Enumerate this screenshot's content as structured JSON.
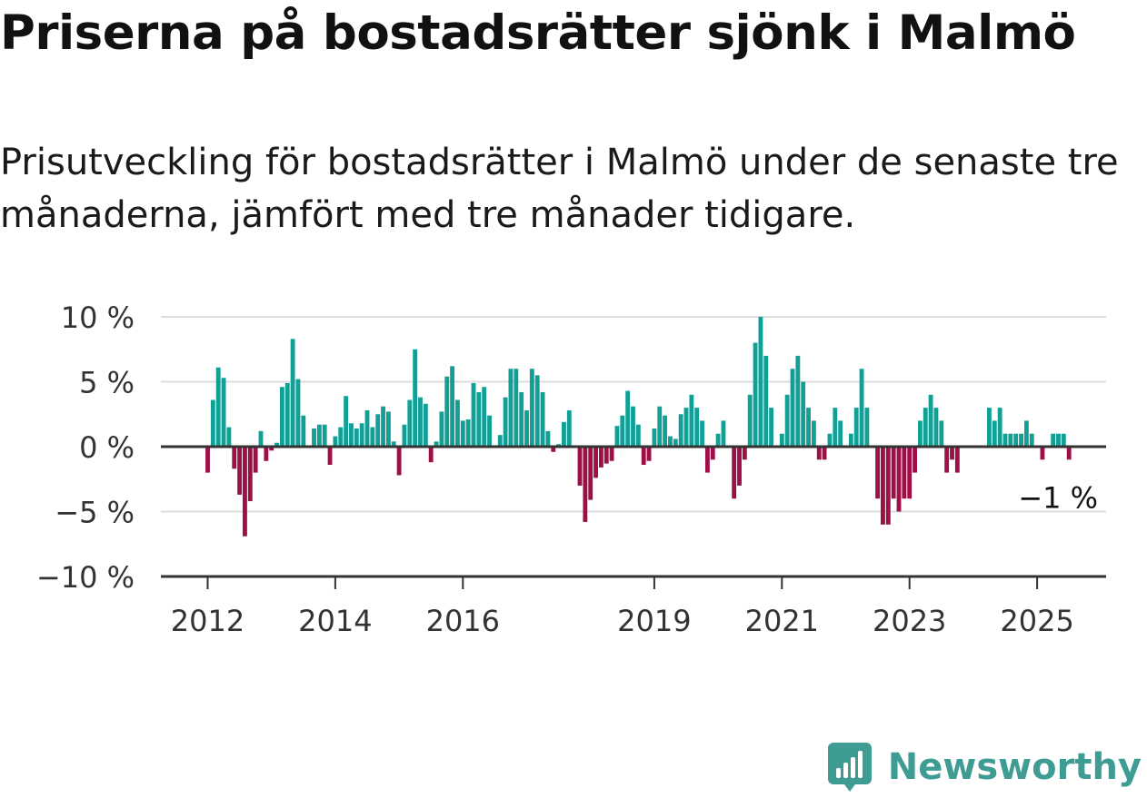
{
  "title": "Priserna på bostadsrätter sjönk i Malmö",
  "subtitle": "Prisutveckling för bostadsrätter i Malmö under de senaste tre månaderna, jämfört med tre månader tidigare.",
  "brand": {
    "name": "Newsworthy",
    "icon": "newsworthy-logo-icon"
  },
  "colors": {
    "positive": "#12a096",
    "negative": "#9e0f47",
    "grid": "#dddddd",
    "axis": "#333333"
  },
  "chart_data": {
    "type": "bar",
    "x_start": "2012-01",
    "y_ticks": [
      10,
      5,
      0,
      -5,
      -10
    ],
    "y_tick_labels": [
      "10 %",
      "5 %",
      "0 %",
      "−5 %",
      "−10 %"
    ],
    "ylim": [
      -10,
      10
    ],
    "x_tick_labels": [
      {
        "label": "2012",
        "date": "2012-01"
      },
      {
        "label": "2014",
        "date": "2014-01"
      },
      {
        "label": "2016",
        "date": "2016-01"
      },
      {
        "label": "2019",
        "date": "2019-01"
      },
      {
        "label": "2021",
        "date": "2021-01"
      },
      {
        "label": "2023",
        "date": "2023-01"
      },
      {
        "label": "2025",
        "date": "2025-01"
      }
    ],
    "annotation": {
      "text": "−1 %",
      "value": -1
    },
    "values": [
      -2.0,
      3.6,
      6.1,
      5.3,
      1.5,
      -1.7,
      -3.7,
      -6.9,
      -4.2,
      -2.0,
      1.2,
      -1.1,
      -0.3,
      0.3,
      4.6,
      4.9,
      8.3,
      5.2,
      2.4,
      0.1,
      1.4,
      1.7,
      1.7,
      -1.4,
      0.8,
      1.5,
      3.9,
      1.8,
      1.4,
      1.8,
      2.8,
      1.5,
      2.5,
      3.1,
      2.7,
      0.4,
      -2.2,
      1.7,
      3.6,
      7.5,
      3.8,
      3.3,
      -1.2,
      0.4,
      2.7,
      5.4,
      6.2,
      3.6,
      2.0,
      2.1,
      4.9,
      4.2,
      4.6,
      2.4,
      0.0,
      0.9,
      3.8,
      6.0,
      6.0,
      4.2,
      2.8,
      6.0,
      5.5,
      4.2,
      1.2,
      -0.4,
      0.2,
      1.9,
      2.8,
      0.0,
      -3.0,
      -5.8,
      -4.1,
      -2.4,
      -1.6,
      -1.3,
      -1.1,
      1.6,
      2.4,
      4.3,
      3.1,
      1.7,
      -1.4,
      -1.1,
      1.4,
      3.1,
      2.4,
      0.8,
      0.6,
      2.5,
      3.0,
      4.0,
      3.0,
      2.0,
      -2.0,
      -1.0,
      1.0,
      2.0,
      0.0,
      -4.0,
      -3.0,
      -1.0,
      4.0,
      8.0,
      10.0,
      7.0,
      3.0,
      0.0,
      1.0,
      4.0,
      6.0,
      7.0,
      5.0,
      3.0,
      2.0,
      -1.0,
      -1.0,
      1.0,
      3.0,
      2.0,
      0.0,
      1.0,
      3.0,
      6.0,
      3.0,
      0.0,
      -4.0,
      -6.0,
      -6.0,
      -4.0,
      -5.0,
      -4.0,
      -4.0,
      -2.0,
      2.0,
      3.0,
      4.0,
      3.0,
      2.0,
      -2.0,
      -1.0,
      -2.0,
      0.0,
      0.0,
      0.0,
      0.0,
      0.0,
      3.0,
      2.0,
      3.0,
      1.0,
      1.0,
      1.0,
      1.0,
      2.0,
      1.0,
      0.0,
      -1.0,
      0.0,
      1.0,
      1.0,
      1.0,
      -1.0
    ]
  }
}
